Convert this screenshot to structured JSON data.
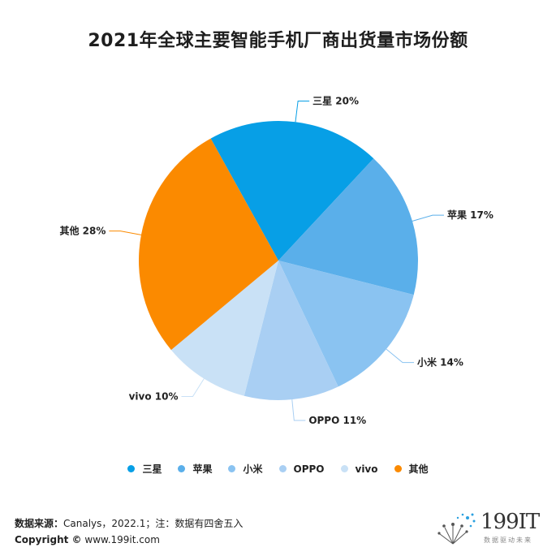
{
  "chart_data": {
    "type": "pie",
    "title": "2021年全球主要智能手机厂商出货量市场份额",
    "slices": [
      {
        "name": "三星",
        "value": 20,
        "label": "三星 20%",
        "color": "#079fe6"
      },
      {
        "name": "苹果",
        "value": 17,
        "label": "苹果 17%",
        "color": "#5aafea"
      },
      {
        "name": "小米",
        "value": 14,
        "label": "小米 14%",
        "color": "#8ac3f1"
      },
      {
        "name": "OPPO",
        "value": 11,
        "label": "OPPO 11%",
        "color": "#a9cff3"
      },
      {
        "name": "vivo",
        "value": 10,
        "label": "vivo 10%",
        "color": "#c9e1f6"
      },
      {
        "name": "其他",
        "value": 28,
        "label": "其他 28%",
        "color": "#fb8a00"
      }
    ],
    "legend_position": "bottom"
  },
  "footer": {
    "source_label": "数据来源：",
    "source_text": "Canalys，2022.1；注：数据有四舍五入",
    "copyright_label": "Copyright ©",
    "copyright_url": "www.199it.com"
  },
  "logo": {
    "name": "199IT",
    "subtitle": "数据驱动未来"
  }
}
